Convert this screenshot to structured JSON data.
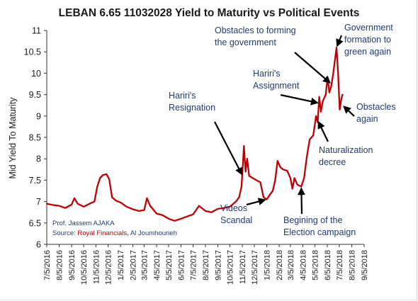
{
  "chart_data": {
    "type": "line",
    "title": "LEBAN 6.65 11032028 Yield to Maturity vs Political Events",
    "ylabel": "Mid Yield To Maturity",
    "xlabel": "",
    "ylim": [
      6,
      11
    ],
    "yticks": [
      6,
      6.5,
      7,
      7.5,
      8,
      8.5,
      9,
      9.5,
      10,
      10.5,
      11
    ],
    "ytick_labels": [
      "6",
      "6.5",
      "7",
      "7.5",
      "8",
      "8.5",
      "9",
      "9.5",
      "10",
      "10.5",
      "11"
    ],
    "xlim": [
      "2016-07-05",
      "2018-09-05"
    ],
    "xtick_labels": [
      "7/5/2016",
      "8/5/2016",
      "9/5/2016",
      "10/5/2016",
      "11/5/2016",
      "12/5/2016",
      "1/5/2017",
      "2/5/2017",
      "3/5/2017",
      "4/5/2017",
      "5/5/2017",
      "6/5/2017",
      "7/5/2017",
      "8/5/2017",
      "9/5/2017",
      "10/5/2017",
      "11/5/2017",
      "12/5/2017",
      "1/5/2018",
      "2/5/2018",
      "3/5/2018",
      "4/5/2018",
      "5/5/2018",
      "6/5/2018",
      "7/5/2018",
      "8/5/2018",
      "9/5/2018"
    ],
    "grid": false,
    "series": [
      {
        "name": "",
        "color": "#c00000",
        "points": [
          [
            "2016-07-05",
            6.95
          ],
          [
            "2016-07-20",
            6.92
          ],
          [
            "2016-08-05",
            6.9
          ],
          [
            "2016-08-20",
            6.85
          ],
          [
            "2016-09-05",
            6.93
          ],
          [
            "2016-09-12",
            7.08
          ],
          [
            "2016-09-20",
            6.95
          ],
          [
            "2016-10-05",
            6.88
          ],
          [
            "2016-10-20",
            6.95
          ],
          [
            "2016-11-01",
            7.0
          ],
          [
            "2016-11-08",
            7.35
          ],
          [
            "2016-11-15",
            7.55
          ],
          [
            "2016-11-22",
            7.62
          ],
          [
            "2016-12-01",
            7.64
          ],
          [
            "2016-12-08",
            7.52
          ],
          [
            "2016-12-15",
            7.1
          ],
          [
            "2016-12-25",
            7.02
          ],
          [
            "2017-01-05",
            6.98
          ],
          [
            "2017-01-20",
            6.88
          ],
          [
            "2017-02-05",
            6.82
          ],
          [
            "2017-02-20",
            6.78
          ],
          [
            "2017-03-05",
            6.8
          ],
          [
            "2017-03-12",
            7.08
          ],
          [
            "2017-03-20",
            6.9
          ],
          [
            "2017-04-05",
            6.72
          ],
          [
            "2017-04-20",
            6.68
          ],
          [
            "2017-05-05",
            6.6
          ],
          [
            "2017-05-20",
            6.55
          ],
          [
            "2017-06-05",
            6.6
          ],
          [
            "2017-06-20",
            6.65
          ],
          [
            "2017-07-05",
            6.7
          ],
          [
            "2017-07-20",
            6.9
          ],
          [
            "2017-08-05",
            6.78
          ],
          [
            "2017-08-20",
            6.75
          ],
          [
            "2017-09-05",
            6.83
          ],
          [
            "2017-09-20",
            6.85
          ],
          [
            "2017-10-05",
            6.88
          ],
          [
            "2017-10-20",
            7.0
          ],
          [
            "2017-10-28",
            7.1
          ],
          [
            "2017-11-03",
            7.35
          ],
          [
            "2017-11-06",
            7.8
          ],
          [
            "2017-11-09",
            8.3
          ],
          [
            "2017-11-13",
            7.7
          ],
          [
            "2017-11-17",
            8.0
          ],
          [
            "2017-11-22",
            7.6
          ],
          [
            "2017-12-01",
            7.55
          ],
          [
            "2017-12-10",
            7.5
          ],
          [
            "2017-12-20",
            7.45
          ],
          [
            "2017-12-28",
            7.1
          ],
          [
            "2018-01-05",
            7.05
          ],
          [
            "2018-01-12",
            7.15
          ],
          [
            "2018-01-20",
            7.25
          ],
          [
            "2018-01-26",
            7.5
          ],
          [
            "2018-02-01",
            7.95
          ],
          [
            "2018-02-08",
            7.8
          ],
          [
            "2018-02-15",
            7.75
          ],
          [
            "2018-02-25",
            7.72
          ],
          [
            "2018-03-05",
            7.55
          ],
          [
            "2018-03-10",
            7.3
          ],
          [
            "2018-03-15",
            7.55
          ],
          [
            "2018-03-22",
            7.4
          ],
          [
            "2018-04-01",
            7.35
          ],
          [
            "2018-04-08",
            7.55
          ],
          [
            "2018-04-15",
            8.05
          ],
          [
            "2018-04-22",
            8.45
          ],
          [
            "2018-05-01",
            8.55
          ],
          [
            "2018-05-08",
            9.0
          ],
          [
            "2018-05-12",
            8.85
          ],
          [
            "2018-05-16",
            9.45
          ],
          [
            "2018-05-20",
            9.1
          ],
          [
            "2018-05-25",
            9.35
          ],
          [
            "2018-06-01",
            9.5
          ],
          [
            "2018-06-06",
            9.9
          ],
          [
            "2018-06-10",
            9.55
          ],
          [
            "2018-06-15",
            9.7
          ],
          [
            "2018-06-20",
            10.0
          ],
          [
            "2018-06-24",
            10.3
          ],
          [
            "2018-06-28",
            10.6
          ],
          [
            "2018-07-02",
            10.0
          ],
          [
            "2018-07-06",
            9.15
          ],
          [
            "2018-07-10",
            9.4
          ],
          [
            "2018-07-13",
            9.5
          ]
        ]
      }
    ],
    "annotations": [
      {
        "id": "hariri-resignation",
        "lines": [
          "Hariri's",
          "Resignation"
        ],
        "date": "2017-11-06",
        "value": 7.6
      },
      {
        "id": "videos-scandal",
        "lines": [
          "Videos",
          "Scandal"
        ],
        "date": "2018-01-05",
        "value": 7.05
      },
      {
        "id": "election-campaign",
        "lines": [
          "Begining of the",
          "Election campaign"
        ],
        "date": "2018-04-01",
        "value": 7.35
      },
      {
        "id": "naturalization-decree",
        "lines": [
          "Naturalization",
          "decree"
        ],
        "date": "2018-05-12",
        "value": 8.9
      },
      {
        "id": "hariri-assignment",
        "lines": [
          "Hariri's",
          "Assignment"
        ],
        "date": "2018-05-16",
        "value": 9.3
      },
      {
        "id": "obstacles-forming",
        "lines": [
          "Obstacles to forming",
          "the government"
        ],
        "date": "2018-06-15",
        "value": 9.75
      },
      {
        "id": "government-formation",
        "lines": [
          "Government",
          "formation to",
          "green again"
        ],
        "date": "2018-06-28",
        "value": 10.6
      },
      {
        "id": "obstacles-again",
        "lines": [
          "Obstacles",
          "again"
        ],
        "date": "2018-07-13",
        "value": 9.25
      }
    ],
    "credits": {
      "author": "Prof. Jassem AJAKA",
      "source_label": "Source:",
      "source_red": "Royal Financials",
      "source_rest": ", Al Joumhourieh"
    }
  }
}
